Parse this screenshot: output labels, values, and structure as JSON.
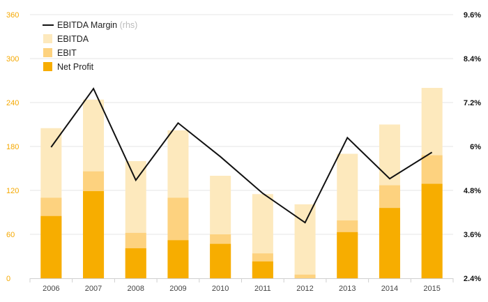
{
  "colors": {
    "ebitda": "#fde9bd",
    "ebit": "#fdd27f",
    "net_profit": "#f7ad00",
    "margin_line": "#111111",
    "grid": "#e6e6e6",
    "left_axis_text": "#f5a800",
    "right_axis_text": "#111111"
  },
  "chart_data": {
    "type": "bar",
    "subtype": "overlapping bars with line on secondary axis",
    "categories": [
      "2006",
      "2007",
      "2008",
      "2009",
      "2010",
      "2011",
      "2012",
      "2013",
      "2014",
      "2015"
    ],
    "series": [
      {
        "name": "EBITDA",
        "kind": "bar",
        "axis": "left",
        "values": [
          205,
          244,
          160,
          202,
          140,
          115,
          101,
          170,
          210,
          260
        ]
      },
      {
        "name": "EBIT",
        "kind": "bar",
        "axis": "left",
        "values": [
          110,
          146,
          62,
          110,
          60,
          34,
          5,
          79,
          127,
          168
        ]
      },
      {
        "name": "Net Profit",
        "kind": "bar",
        "axis": "left",
        "values": [
          85,
          119,
          41,
          52,
          47,
          23,
          0,
          63,
          96,
          129
        ]
      },
      {
        "name": "EBITDA Margin",
        "kind": "line",
        "axis": "right",
        "values": [
          5.98,
          7.58,
          5.08,
          6.64,
          5.72,
          4.72,
          3.92,
          6.24,
          5.12,
          5.84
        ]
      }
    ],
    "left_axis": {
      "ylim": [
        0,
        360
      ],
      "ticks": [
        "0",
        "60",
        "120",
        "180",
        "240",
        "300",
        "360"
      ]
    },
    "right_axis": {
      "ylim": [
        2.4,
        9.6
      ],
      "ticks": [
        "2.4%",
        "3.6%",
        "4.8%",
        "6%",
        "7.2%",
        "8.4%",
        "9.6%"
      ]
    },
    "grid": true,
    "legend": {
      "placement": "top-left",
      "items": [
        {
          "label": "EBITDA Margin",
          "note": "(rhs)",
          "symbol": "line"
        },
        {
          "label": "EBITDA",
          "symbol": "box"
        },
        {
          "label": "EBIT",
          "symbol": "box"
        },
        {
          "label": "Net Profit",
          "symbol": "box"
        }
      ]
    }
  }
}
